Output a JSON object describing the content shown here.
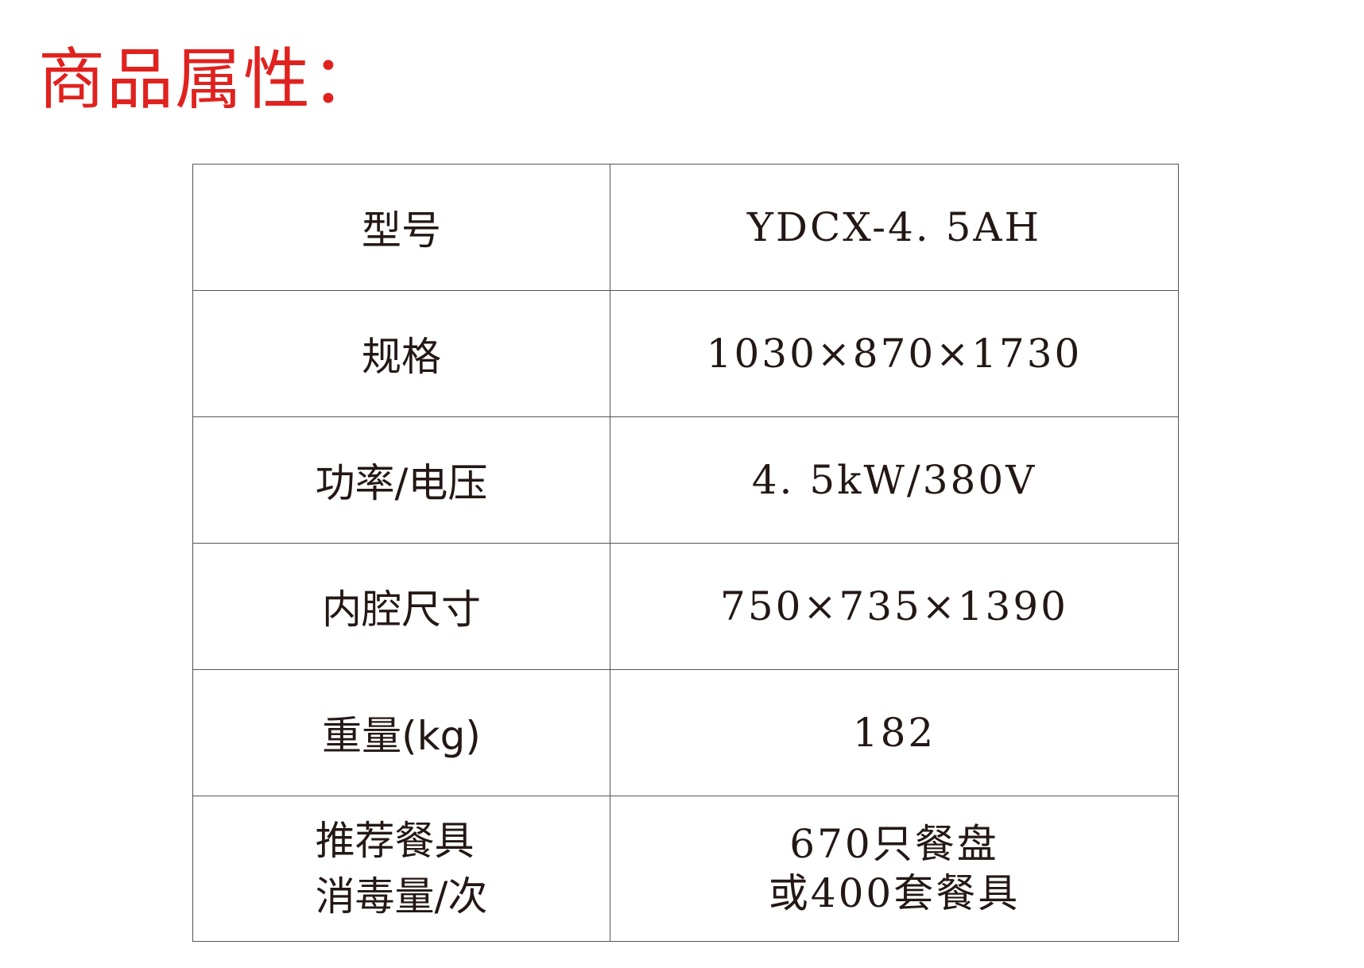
{
  "title": "商品属性：",
  "rows": [
    {
      "label": "型号",
      "value": "YDCX-4. 5AH"
    },
    {
      "label": "规格",
      "value": "1030×870×1730"
    },
    {
      "label": "功率/电压",
      "value": "4. 5kW/380V"
    },
    {
      "label": "内腔尺寸",
      "value": "750×735×1390"
    },
    {
      "label": "重量(kg)",
      "value": "182"
    },
    {
      "label_lines": [
        "推荐餐具",
        "消毒量/次"
      ],
      "value_lines": [
        "670只餐盘",
        "或400套餐具"
      ]
    }
  ],
  "colors": {
    "title": "#e0221f",
    "text": "#231815",
    "border": "#555555"
  }
}
